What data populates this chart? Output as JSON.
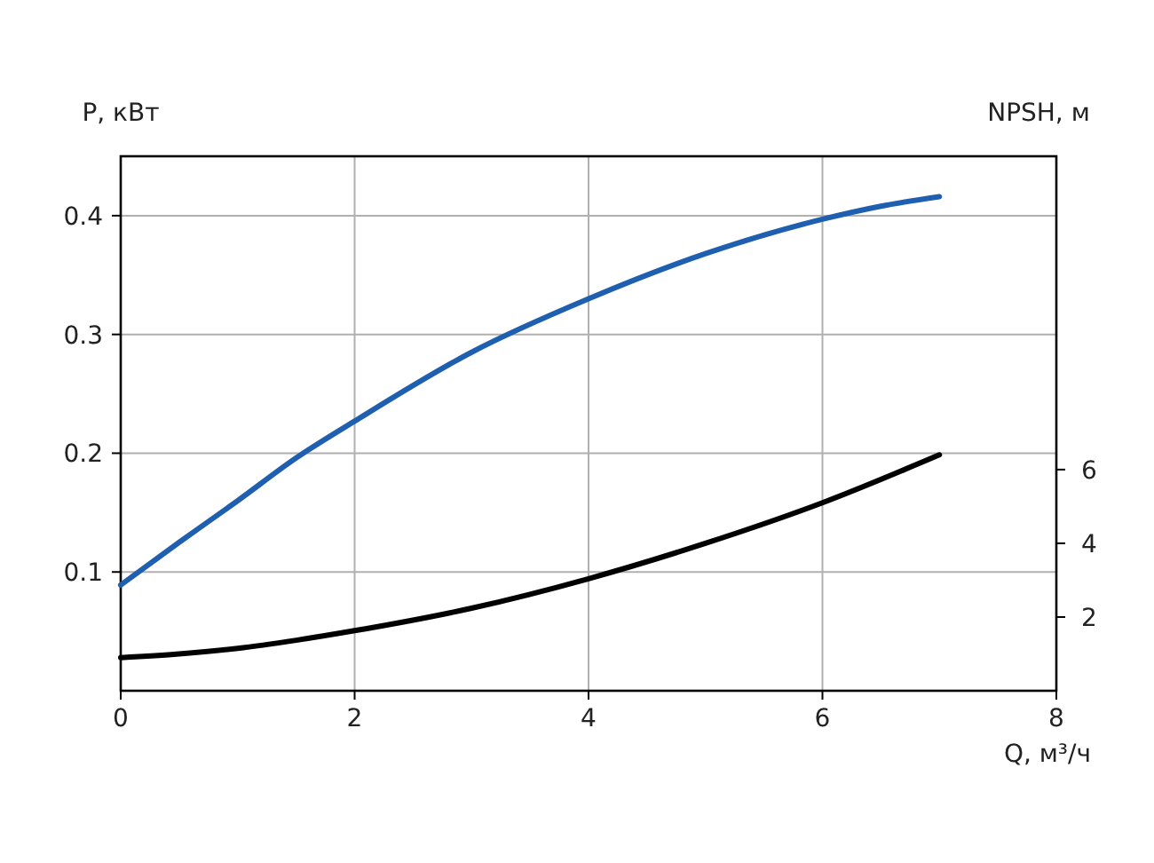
{
  "chart_data": {
    "type": "line",
    "ylabel": "P, кВт",
    "y2label": "NPSH, м",
    "xlabel": "Q, м³/ч",
    "xlim": [
      0,
      8
    ],
    "xticks": [
      0,
      2,
      4,
      6,
      8
    ],
    "ylim": [
      0,
      0.45
    ],
    "yticks": [
      0.1,
      0.2,
      0.3,
      0.4
    ],
    "y2lim": [
      0,
      14.5
    ],
    "y2ticks": [
      2,
      4,
      6
    ],
    "grid": true,
    "marker": "none",
    "line_style": "solid",
    "series": [
      {
        "color": "#1f5fb0",
        "x": [
          0,
          0.5,
          1,
          1.5,
          2,
          3,
          4,
          5,
          6,
          6.5,
          7
        ],
        "values": [
          0.089,
          0.125,
          0.16,
          0.196,
          0.227,
          0.285,
          0.33,
          0.368,
          0.397,
          0.408,
          0.416
        ]
      },
      {
        "color": "#000000",
        "axis": "y2",
        "x": [
          0,
          0.5,
          1,
          1.5,
          2,
          3,
          4,
          5,
          6,
          7
        ],
        "values": [
          0.9,
          1.0,
          1.15,
          1.37,
          1.63,
          2.24,
          3.04,
          4.0,
          5.1,
          6.4
        ]
      }
    ]
  }
}
